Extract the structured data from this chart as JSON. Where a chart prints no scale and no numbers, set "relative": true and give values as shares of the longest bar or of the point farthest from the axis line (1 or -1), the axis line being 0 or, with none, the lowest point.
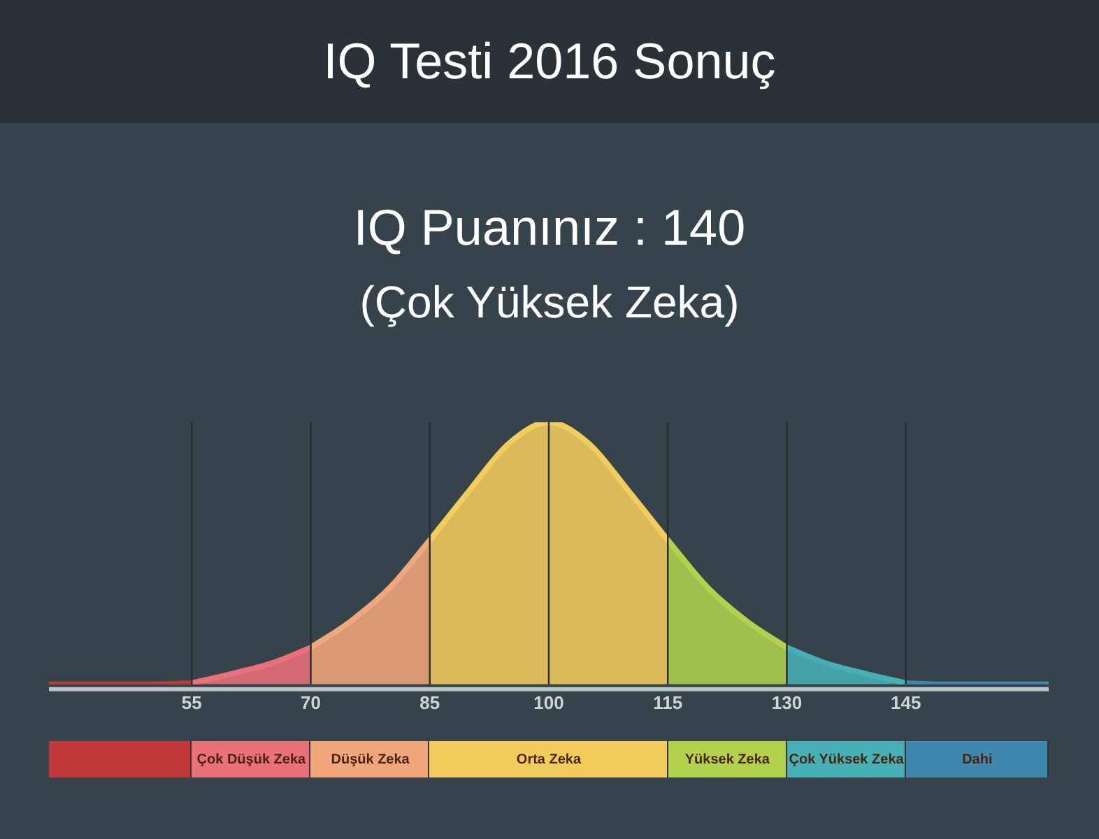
{
  "chart_data": {
    "type": "area",
    "title": "IQ Testi 2016 Sonuç",
    "subtitle": "IQ Puanınız : 140",
    "annotations": [
      "(Çok Yüksek Zeka)"
    ],
    "relative": true,
    "series": [
      {
        "color": "#c0383a",
        "x": [
          37,
          50,
          55
        ],
        "values": [
          0,
          0,
          0.005
        ]
      },
      {
        "name": "Çok Düşük Zeka",
        "color": "#ea707a",
        "x": [
          55,
          60,
          65,
          70
        ],
        "values": [
          0.005,
          0.04,
          0.08,
          0.14
        ]
      },
      {
        "name": "Düşük Zeka",
        "color": "#f2a67c",
        "x": [
          70,
          75,
          80,
          85
        ],
        "values": [
          0.14,
          0.24,
          0.37,
          0.55
        ]
      },
      {
        "name": "Orta Zeka",
        "color": "#f3cc5e",
        "x": [
          85,
          90,
          95,
          100,
          105,
          110,
          115
        ],
        "values": [
          0.55,
          0.74,
          0.92,
          1,
          0.92,
          0.74,
          0.55
        ]
      },
      {
        "name": "Yüksek Zeka",
        "color": "#b2d24e",
        "x": [
          115,
          120,
          125,
          130
        ],
        "values": [
          0.55,
          0.37,
          0.24,
          0.14
        ]
      },
      {
        "name": "Çok Yüksek Zeka",
        "color": "#46b0b6",
        "x": [
          130,
          135,
          140,
          145
        ],
        "values": [
          0.14,
          0.08,
          0.04,
          0.005
        ]
      },
      {
        "name": "Dahi",
        "color": "#3e88ae",
        "x": [
          145,
          150,
          163
        ],
        "values": [
          0.005,
          0,
          0
        ]
      }
    ],
    "xlim": [
      37,
      163
    ],
    "xticks": [
      55,
      70,
      85,
      100,
      115,
      130,
      145
    ],
    "grid": "x",
    "legend": "bottom"
  }
}
